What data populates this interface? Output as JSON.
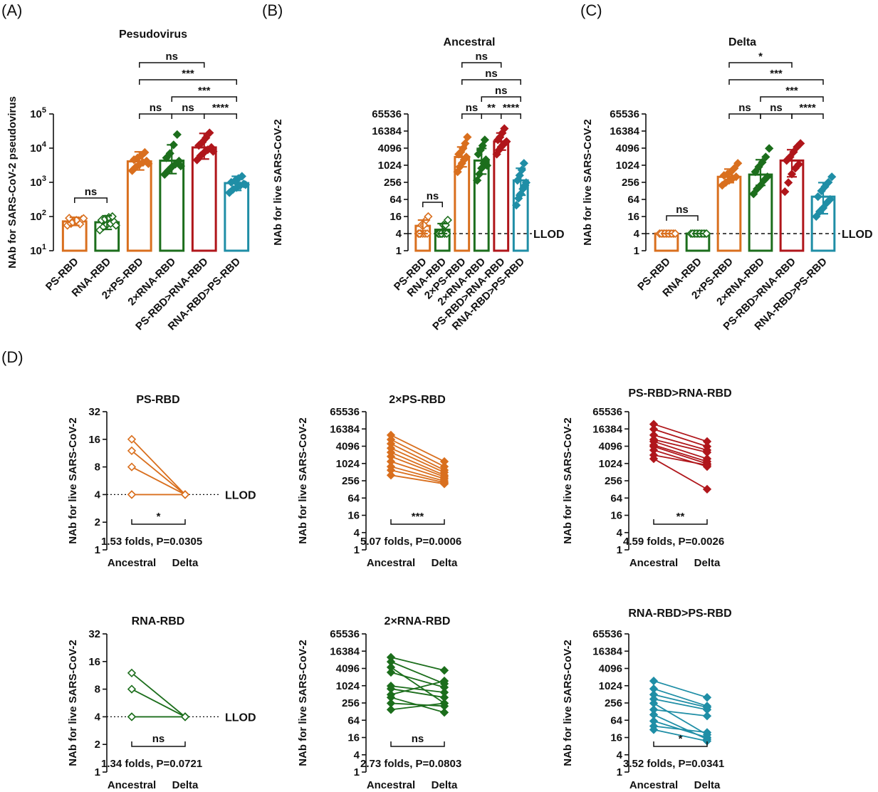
{
  "colors": {
    "PS-RBD": "#d96f1e",
    "RNA-RBD": "#1c6e1c",
    "2×PS-RBD": "#d96f1e",
    "2×RNA-RBD": "#1c6e1c",
    "PS-RBD>RNA-RBD": "#b0161b",
    "RNA-RBD>PS-RBD": "#1f8ea6"
  },
  "panel_labels": [
    "(A)",
    "(B)",
    "(C)",
    "(D)"
  ],
  "chart_data": [
    {
      "id": "A",
      "type": "bar",
      "title": "Pesudovirus",
      "ylabel": "NAb for SARS-CoV-2 pseudovirus",
      "yscale": "log10",
      "ylim": [
        10,
        100000
      ],
      "yticks": [
        {
          "v": 10,
          "base": "10",
          "exp": "1"
        },
        {
          "v": 100,
          "base": "10",
          "exp": "2"
        },
        {
          "v": 1000,
          "base": "10",
          "exp": "3"
        },
        {
          "v": 10000,
          "base": "10",
          "exp": "4"
        },
        {
          "v": 100000,
          "base": "10",
          "exp": "5"
        }
      ],
      "categories": [
        "PS-RBD",
        "RNA-RBD",
        "2×PS-RBD",
        "2×RNA-RBD",
        "PS-RBD>RNA-RBD",
        "RNA-RBD>PS-RBD"
      ],
      "means": [
        72,
        68,
        4100,
        4300,
        10500,
        950
      ],
      "err": [
        [
          55,
          95
        ],
        [
          42,
          105
        ],
        [
          2300,
          7800
        ],
        [
          1800,
          12500
        ],
        [
          4800,
          27000
        ],
        [
          580,
          1500
        ]
      ],
      "points": [
        [
          55,
          62,
          70,
          75,
          82,
          90,
          68,
          78,
          60,
          88
        ],
        [
          40,
          50,
          58,
          62,
          70,
          78,
          85,
          95,
          100,
          55
        ],
        [
          2200,
          2800,
          3300,
          3800,
          4200,
          4600,
          5200,
          6000,
          7500,
          3500
        ],
        [
          1700,
          2200,
          2800,
          3400,
          4200,
          5200,
          7000,
          12500,
          25000,
          3000
        ],
        [
          4500,
          6000,
          7500,
          9000,
          10500,
          12000,
          15000,
          20000,
          28000,
          8000
        ],
        [
          500,
          620,
          700,
          800,
          900,
          1000,
          1100,
          1300,
          1500,
          850
        ]
      ],
      "hollow": [
        true,
        true,
        false,
        false,
        false,
        false
      ],
      "llod": null,
      "sig": [
        {
          "a": 0,
          "b": 1,
          "text": "ns",
          "level": 0
        },
        {
          "a": 2,
          "b": 3,
          "text": "ns",
          "level": 0
        },
        {
          "a": 3,
          "b": 4,
          "text": "ns",
          "level": 0
        },
        {
          "a": 4,
          "b": 5,
          "text": "****",
          "level": 0
        },
        {
          "a": 3,
          "b": 5,
          "text": "***",
          "level": 1
        },
        {
          "a": 2,
          "b": 5,
          "text": "***",
          "level": 2
        },
        {
          "a": 2,
          "b": 4,
          "text": "ns",
          "level": 3
        }
      ]
    },
    {
      "id": "B",
      "type": "bar",
      "title": "Ancestral",
      "ylabel": "NAb for live SARS-CoV-2",
      "yscale": "log2",
      "ylim": [
        1,
        65536
      ],
      "yticks": [
        {
          "v": 1,
          "label": "1"
        },
        {
          "v": 4,
          "label": "4"
        },
        {
          "v": 16,
          "label": "16"
        },
        {
          "v": 64,
          "label": "64"
        },
        {
          "v": 256,
          "label": "256"
        },
        {
          "v": 1024,
          "label": "1024"
        },
        {
          "v": 4096,
          "label": "4096"
        },
        {
          "v": 16384,
          "label": "16384"
        },
        {
          "v": 65536,
          "label": "65536"
        }
      ],
      "categories": [
        "PS-RBD",
        "RNA-RBD",
        "2×PS-RBD",
        "2×RNA-RBD",
        "PS-RBD>RNA-RBD",
        "RNA-RBD>PS-RBD"
      ],
      "means": [
        7.5,
        5.5,
        2000,
        1500,
        7000,
        300
      ],
      "err": [
        [
          4,
          12
        ],
        [
          4,
          9
        ],
        [
          900,
          4500
        ],
        [
          500,
          4000
        ],
        [
          3500,
          14000
        ],
        [
          90,
          800
        ]
      ],
      "points": [
        [
          4,
          4,
          4,
          4,
          4,
          4,
          8,
          8,
          12,
          16
        ],
        [
          4,
          4,
          4,
          4,
          4,
          4,
          4,
          8,
          8,
          12
        ],
        [
          600,
          900,
          1200,
          1600,
          2000,
          2500,
          3000,
          4000,
          6000,
          10000
        ],
        [
          300,
          500,
          800,
          1200,
          1600,
          2500,
          3500,
          5000,
          8000,
          1000
        ],
        [
          2500,
          3500,
          4500,
          5500,
          6500,
          8000,
          10000,
          14000,
          20000,
          7000
        ],
        [
          40,
          70,
          100,
          150,
          200,
          300,
          450,
          700,
          1200,
          250
        ]
      ],
      "hollow": [
        true,
        true,
        false,
        false,
        false,
        false
      ],
      "llod": {
        "v": 4,
        "label": "LLOD"
      },
      "sig": [
        {
          "a": 0,
          "b": 1,
          "text": "ns",
          "level": 0
        },
        {
          "a": 2,
          "b": 3,
          "text": "ns",
          "level": 0
        },
        {
          "a": 3,
          "b": 4,
          "text": "**",
          "level": 0
        },
        {
          "a": 4,
          "b": 5,
          "text": "****",
          "level": 0
        },
        {
          "a": 3,
          "b": 5,
          "text": "ns",
          "level": 1
        },
        {
          "a": 2,
          "b": 5,
          "text": "ns",
          "level": 2
        },
        {
          "a": 2,
          "b": 4,
          "text": "ns",
          "level": 3
        }
      ]
    },
    {
      "id": "C",
      "type": "bar",
      "title": "Delta",
      "ylabel": "NAb for live SARS-CoV-2",
      "yscale": "log2",
      "ylim": [
        1,
        65536
      ],
      "yticks": [
        {
          "v": 1,
          "label": "1"
        },
        {
          "v": 4,
          "label": "4"
        },
        {
          "v": 16,
          "label": "16"
        },
        {
          "v": 64,
          "label": "64"
        },
        {
          "v": 256,
          "label": "256"
        },
        {
          "v": 1024,
          "label": "1024"
        },
        {
          "v": 4096,
          "label": "4096"
        },
        {
          "v": 16384,
          "label": "16384"
        },
        {
          "v": 65536,
          "label": "65536"
        }
      ],
      "categories": [
        "PS-RBD",
        "RNA-RBD",
        "2×PS-RBD",
        "2×RNA-RBD",
        "PS-RBD>RNA-RBD",
        "RNA-RBD>PS-RBD"
      ],
      "means": [
        4,
        4,
        400,
        480,
        1500,
        80
      ],
      "err": [
        [
          4,
          4
        ],
        [
          4,
          4
        ],
        [
          250,
          750
        ],
        [
          200,
          1600
        ],
        [
          400,
          3600
        ],
        [
          20,
          250
        ]
      ],
      "points": [
        [
          4,
          4,
          4,
          4,
          4,
          4,
          4,
          4,
          4,
          4
        ],
        [
          4,
          4,
          4,
          4,
          4,
          4,
          4,
          4,
          4,
          4
        ],
        [
          200,
          250,
          300,
          350,
          400,
          450,
          500,
          600,
          800,
          1200
        ],
        [
          100,
          150,
          200,
          300,
          400,
          600,
          900,
          1300,
          2000,
          4000
        ],
        [
          120,
          250,
          500,
          800,
          1100,
          1500,
          2000,
          3000,
          4500,
          6000
        ],
        [
          16,
          24,
          32,
          48,
          64,
          80,
          128,
          180,
          256,
          400
        ]
      ],
      "hollow": [
        true,
        true,
        false,
        false,
        false,
        false
      ],
      "llod": {
        "v": 4,
        "label": "LLOD"
      },
      "sig": [
        {
          "a": 0,
          "b": 1,
          "text": "ns",
          "level": 0
        },
        {
          "a": 2,
          "b": 3,
          "text": "ns",
          "level": 0
        },
        {
          "a": 3,
          "b": 4,
          "text": "ns",
          "level": 0
        },
        {
          "a": 4,
          "b": 5,
          "text": "****",
          "level": 0
        },
        {
          "a": 3,
          "b": 5,
          "text": "***",
          "level": 1
        },
        {
          "a": 2,
          "b": 5,
          "text": "***",
          "level": 2
        },
        {
          "a": 2,
          "b": 4,
          "text": "*",
          "level": 3
        }
      ]
    },
    {
      "id": "D1",
      "type": "line",
      "title": "PS-RBD",
      "group": "PS-RBD",
      "ylabel": "NAb for live SARS-CoV-2",
      "yscale": "log2",
      "ylim": [
        1,
        32
      ],
      "yticks": [
        {
          "v": 1,
          "label": "1"
        },
        {
          "v": 2,
          "label": "2"
        },
        {
          "v": 4,
          "label": "4"
        },
        {
          "v": 8,
          "label": "8"
        },
        {
          "v": 16,
          "label": "16"
        },
        {
          "v": 32,
          "label": "32"
        }
      ],
      "x": [
        "Ancestral",
        "Delta"
      ],
      "pairs": [
        [
          16,
          4
        ],
        [
          12,
          4
        ],
        [
          8,
          4
        ],
        [
          4,
          4
        ],
        [
          4,
          4
        ]
      ],
      "hollow": true,
      "llod": {
        "v": 4,
        "label": "LLOD"
      },
      "sig": "*",
      "fold": "1.53 folds, P=0.0305"
    },
    {
      "id": "D2",
      "type": "line",
      "title": "2×PS-RBD",
      "group": "2×PS-RBD",
      "ylabel": "NAb for live SARS-CoV-2",
      "yscale": "log2",
      "ylim": [
        1,
        65536
      ],
      "yticks": [
        {
          "v": 1,
          "label": "1"
        },
        {
          "v": 4,
          "label": "4"
        },
        {
          "v": 16,
          "label": "16"
        },
        {
          "v": 64,
          "label": "64"
        },
        {
          "v": 256,
          "label": "256"
        },
        {
          "v": 1024,
          "label": "1024"
        },
        {
          "v": 4096,
          "label": "4096"
        },
        {
          "v": 16384,
          "label": "16384"
        },
        {
          "v": 65536,
          "label": "65536"
        }
      ],
      "x": [
        "Ancestral",
        "Delta"
      ],
      "pairs": [
        [
          10000,
          1200
        ],
        [
          7000,
          800
        ],
        [
          5000,
          600
        ],
        [
          3500,
          500
        ],
        [
          2500,
          400
        ],
        [
          1800,
          350
        ],
        [
          1200,
          300
        ],
        [
          800,
          250
        ],
        [
          600,
          220
        ],
        [
          400,
          200
        ]
      ],
      "hollow": false,
      "llod": null,
      "sig": "***",
      "fold": "5.07 folds, P=0.0006"
    },
    {
      "id": "D3",
      "type": "line",
      "title": "PS-RBD>RNA-RBD",
      "group": "PS-RBD>RNA-RBD",
      "ylabel": "NAb for live SARS-CoV-2",
      "yscale": "log2",
      "ylim": [
        1,
        65536
      ],
      "yticks": [
        {
          "v": 1,
          "label": "1"
        },
        {
          "v": 4,
          "label": "4"
        },
        {
          "v": 16,
          "label": "16"
        },
        {
          "v": 64,
          "label": "64"
        },
        {
          "v": 256,
          "label": "256"
        },
        {
          "v": 1024,
          "label": "1024"
        },
        {
          "v": 4096,
          "label": "4096"
        },
        {
          "v": 16384,
          "label": "16384"
        },
        {
          "v": 65536,
          "label": "65536"
        }
      ],
      "x": [
        "Ancestral",
        "Delta"
      ],
      "pairs": [
        [
          24000,
          6000
        ],
        [
          16000,
          4000
        ],
        [
          10000,
          3000
        ],
        [
          7000,
          2500
        ],
        [
          6000,
          1500
        ],
        [
          4500,
          1200
        ],
        [
          4000,
          1000
        ],
        [
          3000,
          800
        ],
        [
          2000,
          900
        ],
        [
          1500,
          130
        ]
      ],
      "hollow": false,
      "llod": null,
      "sig": "**",
      "fold": "4.59 folds, P=0.0026"
    },
    {
      "id": "D4",
      "type": "line",
      "title": "RNA-RBD",
      "group": "RNA-RBD",
      "ylabel": "NAb for live SARS-CoV-2",
      "yscale": "log2",
      "ylim": [
        1,
        32
      ],
      "yticks": [
        {
          "v": 1,
          "label": "1"
        },
        {
          "v": 2,
          "label": "2"
        },
        {
          "v": 4,
          "label": "4"
        },
        {
          "v": 8,
          "label": "8"
        },
        {
          "v": 16,
          "label": "16"
        },
        {
          "v": 32,
          "label": "32"
        }
      ],
      "x": [
        "Ancestral",
        "Delta"
      ],
      "pairs": [
        [
          12,
          4
        ],
        [
          8,
          4
        ],
        [
          4,
          4
        ],
        [
          4,
          4
        ]
      ],
      "hollow": true,
      "llod": {
        "v": 4,
        "label": "LLOD"
      },
      "sig": "ns",
      "fold": "1.34 folds, P=0.0721"
    },
    {
      "id": "D5",
      "type": "line",
      "title": "2×RNA-RBD",
      "group": "2×RNA-RBD",
      "ylabel": "NAb for live SARS-CoV-2",
      "yscale": "log2",
      "ylim": [
        1,
        65536
      ],
      "yticks": [
        {
          "v": 1,
          "label": "1"
        },
        {
          "v": 4,
          "label": "4"
        },
        {
          "v": 16,
          "label": "16"
        },
        {
          "v": 64,
          "label": "64"
        },
        {
          "v": 256,
          "label": "256"
        },
        {
          "v": 1024,
          "label": "1024"
        },
        {
          "v": 4096,
          "label": "4096"
        },
        {
          "v": 16384,
          "label": "16384"
        },
        {
          "v": 65536,
          "label": "65536"
        }
      ],
      "x": [
        "Ancestral",
        "Delta"
      ],
      "pairs": [
        [
          10000,
          3500
        ],
        [
          7000,
          1200
        ],
        [
          4500,
          250
        ],
        [
          3000,
          900
        ],
        [
          1000,
          600
        ],
        [
          800,
          400
        ],
        [
          500,
          1500
        ],
        [
          250,
          200
        ],
        [
          150,
          250
        ],
        [
          400,
          120
        ]
      ],
      "hollow": false,
      "llod": null,
      "sig": "ns",
      "fold": "2.73 folds, P=0.0803"
    },
    {
      "id": "D6",
      "type": "line",
      "title": "RNA-RBD>PS-RBD",
      "group": "RNA-RBD>PS-RBD",
      "ylabel": "NAb for live SARS-CoV-2",
      "yscale": "log2",
      "ylim": [
        1,
        65536
      ],
      "yticks": [
        {
          "v": 1,
          "label": "1"
        },
        {
          "v": 4,
          "label": "4"
        },
        {
          "v": 16,
          "label": "16"
        },
        {
          "v": 64,
          "label": "64"
        },
        {
          "v": 256,
          "label": "256"
        },
        {
          "v": 1024,
          "label": "1024"
        },
        {
          "v": 4096,
          "label": "4096"
        },
        {
          "v": 16384,
          "label": "16384"
        },
        {
          "v": 65536,
          "label": "65536"
        }
      ],
      "x": [
        "Ancestral",
        "Delta"
      ],
      "pairs": [
        [
          1500,
          400
        ],
        [
          800,
          200
        ],
        [
          500,
          180
        ],
        [
          350,
          150
        ],
        [
          250,
          20
        ],
        [
          150,
          90
        ],
        [
          100,
          14
        ],
        [
          60,
          16
        ],
        [
          40,
          24
        ],
        [
          30,
          12
        ]
      ],
      "hollow": false,
      "llod": null,
      "sig": "*",
      "fold": "3.52 folds, P=0.0341"
    }
  ]
}
